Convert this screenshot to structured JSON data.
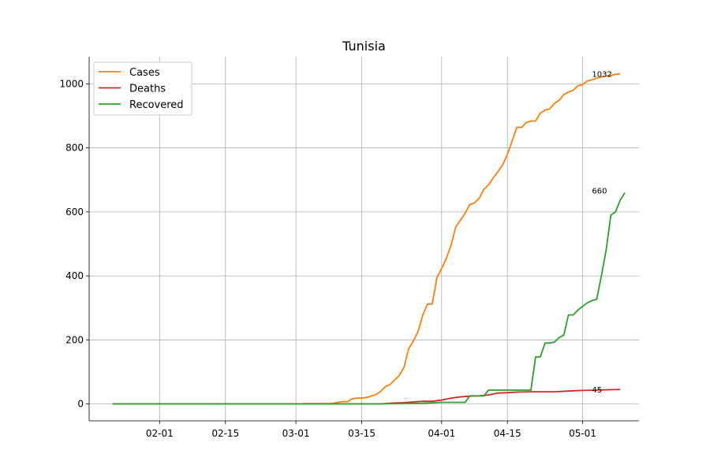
{
  "chart_data": {
    "type": "line",
    "title": "Tunisia",
    "xlabel": "",
    "ylabel": "",
    "x_ticks": [
      "02-01",
      "02-15",
      "03-01",
      "03-15",
      "04-01",
      "04-15",
      "05-01"
    ],
    "y_ticks": [
      0,
      200,
      400,
      600,
      800,
      1000
    ],
    "xlim": [
      "2020-01-17",
      "2020-05-13"
    ],
    "ylim": [
      -53,
      1085
    ],
    "grid": true,
    "legend": "top-left",
    "colors": {
      "Cases": "#ff7f0e",
      "Deaths": "#d62728",
      "Recovered": "#2ca02c"
    },
    "series": [
      {
        "name": "Cases",
        "points": [
          [
            "2020-01-22",
            0
          ],
          [
            "2020-03-02",
            0
          ],
          [
            "2020-03-03",
            1
          ],
          [
            "2020-03-08",
            1
          ],
          [
            "2020-03-09",
            2
          ],
          [
            "2020-03-10",
            5
          ],
          [
            "2020-03-11",
            7
          ],
          [
            "2020-03-12",
            7
          ],
          [
            "2020-03-13",
            16
          ],
          [
            "2020-03-14",
            18
          ],
          [
            "2020-03-15",
            18
          ],
          [
            "2020-03-16",
            20
          ],
          [
            "2020-03-17",
            24
          ],
          [
            "2020-03-18",
            29
          ],
          [
            "2020-03-19",
            39
          ],
          [
            "2020-03-20",
            54
          ],
          [
            "2020-03-21",
            60
          ],
          [
            "2020-03-22",
            75
          ],
          [
            "2020-03-23",
            89
          ],
          [
            "2020-03-24",
            114
          ],
          [
            "2020-03-25",
            173
          ],
          [
            "2020-03-26",
            197
          ],
          [
            "2020-03-27",
            227
          ],
          [
            "2020-03-28",
            278
          ],
          [
            "2020-03-29",
            312
          ],
          [
            "2020-03-30",
            312
          ],
          [
            "2020-03-31",
            394
          ],
          [
            "2020-04-01",
            423
          ],
          [
            "2020-04-02",
            455
          ],
          [
            "2020-04-03",
            495
          ],
          [
            "2020-04-04",
            553
          ],
          [
            "2020-04-05",
            574
          ],
          [
            "2020-04-06",
            596
          ],
          [
            "2020-04-07",
            623
          ],
          [
            "2020-04-08",
            628
          ],
          [
            "2020-04-09",
            643
          ],
          [
            "2020-04-10",
            671
          ],
          [
            "2020-04-11",
            685
          ],
          [
            "2020-04-12",
            707
          ],
          [
            "2020-04-13",
            726
          ],
          [
            "2020-04-14",
            747
          ],
          [
            "2020-04-15",
            780
          ],
          [
            "2020-04-16",
            822
          ],
          [
            "2020-04-17",
            864
          ],
          [
            "2020-04-18",
            864
          ],
          [
            "2020-04-19",
            879
          ],
          [
            "2020-04-20",
            884
          ],
          [
            "2020-04-21",
            884
          ],
          [
            "2020-04-22",
            909
          ],
          [
            "2020-04-23",
            918
          ],
          [
            "2020-04-24",
            922
          ],
          [
            "2020-04-25",
            939
          ],
          [
            "2020-04-26",
            949
          ],
          [
            "2020-04-27",
            967
          ],
          [
            "2020-04-28",
            975
          ],
          [
            "2020-04-29",
            980
          ],
          [
            "2020-04-30",
            994
          ],
          [
            "2020-05-01",
            998
          ],
          [
            "2020-05-02",
            1009
          ],
          [
            "2020-05-03",
            1013
          ],
          [
            "2020-05-04",
            1018
          ],
          [
            "2020-05-05",
            1022
          ],
          [
            "2020-05-06",
            1025
          ],
          [
            "2020-05-07",
            1026
          ],
          [
            "2020-05-08",
            1030
          ],
          [
            "2020-05-09",
            1032
          ]
        ]
      },
      {
        "name": "Deaths",
        "points": [
          [
            "2020-01-22",
            0
          ],
          [
            "2020-03-19",
            0
          ],
          [
            "2020-03-20",
            1
          ],
          [
            "2020-03-22",
            3
          ],
          [
            "2020-03-24",
            4
          ],
          [
            "2020-03-26",
            6
          ],
          [
            "2020-03-28",
            8
          ],
          [
            "2020-03-30",
            8
          ],
          [
            "2020-04-01",
            12
          ],
          [
            "2020-04-03",
            18
          ],
          [
            "2020-04-05",
            22
          ],
          [
            "2020-04-07",
            24
          ],
          [
            "2020-04-09",
            25
          ],
          [
            "2020-04-11",
            28
          ],
          [
            "2020-04-13",
            34
          ],
          [
            "2020-04-15",
            35
          ],
          [
            "2020-04-17",
            37
          ],
          [
            "2020-04-20",
            38
          ],
          [
            "2020-04-25",
            38
          ],
          [
            "2020-04-28",
            40
          ],
          [
            "2020-05-01",
            42
          ],
          [
            "2020-05-04",
            43
          ],
          [
            "2020-05-06",
            44
          ],
          [
            "2020-05-09",
            45
          ]
        ]
      },
      {
        "name": "Recovered",
        "points": [
          [
            "2020-01-22",
            0
          ],
          [
            "2020-03-19",
            0
          ],
          [
            "2020-03-22",
            1
          ],
          [
            "2020-03-28",
            2
          ],
          [
            "2020-04-01",
            5
          ],
          [
            "2020-04-06",
            5
          ],
          [
            "2020-04-07",
            25
          ],
          [
            "2020-04-10",
            25
          ],
          [
            "2020-04-11",
            43
          ],
          [
            "2020-04-19",
            43
          ],
          [
            "2020-04-20",
            43
          ],
          [
            "2020-04-21",
            147
          ],
          [
            "2020-04-22",
            147
          ],
          [
            "2020-04-23",
            190
          ],
          [
            "2020-04-24",
            190
          ],
          [
            "2020-04-25",
            193
          ],
          [
            "2020-04-26",
            207
          ],
          [
            "2020-04-27",
            215
          ],
          [
            "2020-04-28",
            278
          ],
          [
            "2020-04-29",
            278
          ],
          [
            "2020-04-30",
            293
          ],
          [
            "2020-05-01",
            305
          ],
          [
            "2020-05-02",
            316
          ],
          [
            "2020-05-03",
            323
          ],
          [
            "2020-05-04",
            327
          ],
          [
            "2020-05-05",
            400
          ],
          [
            "2020-05-06",
            480
          ],
          [
            "2020-05-07",
            590
          ],
          [
            "2020-05-08",
            600
          ],
          [
            "2020-05-09",
            637
          ],
          [
            "2020-05-10",
            660
          ]
        ]
      }
    ],
    "end_labels": [
      {
        "series": "Cases",
        "text": "1032",
        "x": "2020-05-03",
        "y": 1032
      },
      {
        "series": "Recovered",
        "text": "660",
        "x": "2020-05-03",
        "y": 668
      },
      {
        "series": "Deaths",
        "text": "45",
        "x": "2020-05-03",
        "y": 45
      }
    ]
  }
}
